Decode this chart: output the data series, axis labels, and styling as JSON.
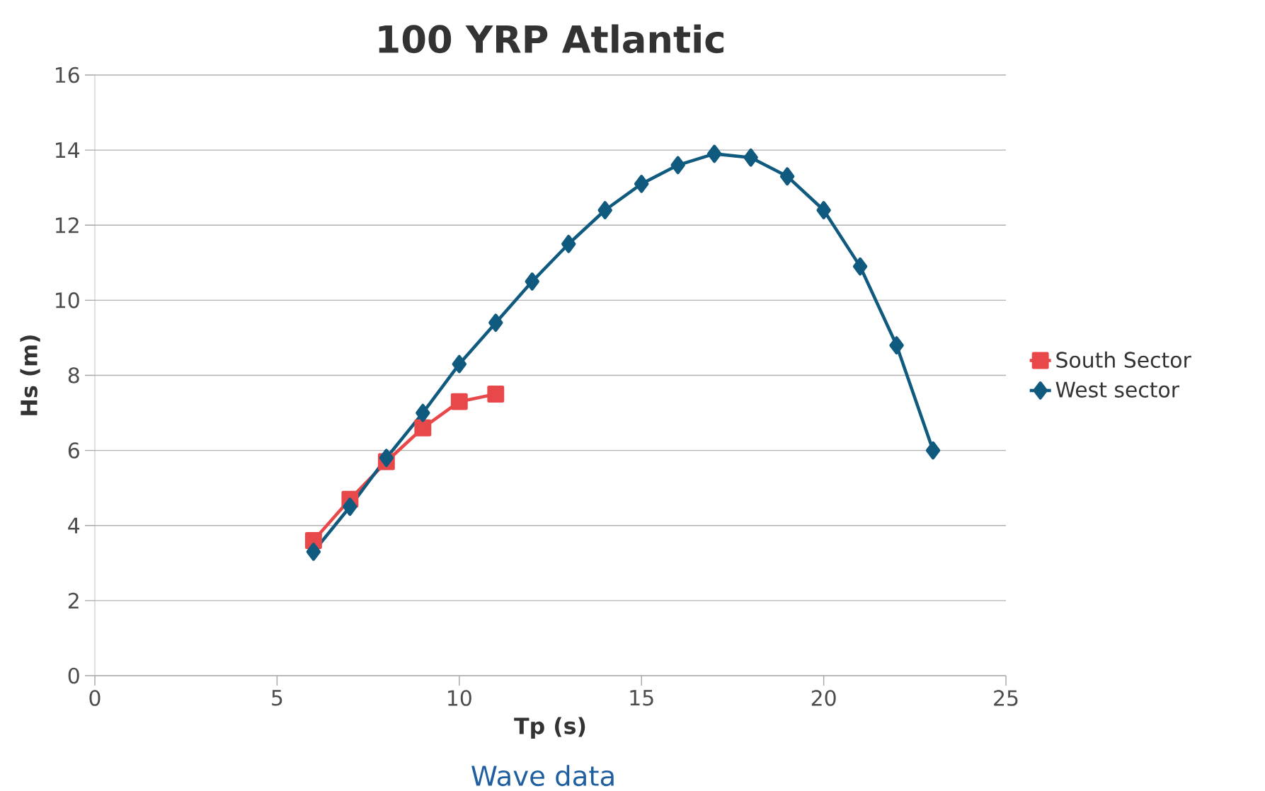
{
  "chart_data": {
    "type": "line",
    "title": "100 YRP Atlantic",
    "xlabel": "Tp (s)",
    "ylabel": "Hs (m)",
    "xlim": [
      0,
      25
    ],
    "xticks": [
      0,
      5,
      10,
      15,
      20,
      25
    ],
    "ylim": [
      0,
      16
    ],
    "yticks": [
      0,
      2,
      4,
      6,
      8,
      10,
      12,
      14,
      16
    ],
    "grid": "y",
    "legend": "right",
    "line_style": "solid",
    "series": [
      {
        "name": "South Sector",
        "color": "#e8484a",
        "marker": "square",
        "x": [
          6,
          7,
          8,
          9,
          10,
          11
        ],
        "values": [
          3.6,
          4.7,
          5.7,
          6.6,
          7.3,
          7.5
        ]
      },
      {
        "name": "West sector",
        "color": "#0f5a7e",
        "marker": "diamond",
        "x": [
          6,
          7,
          8,
          9,
          10,
          11,
          12,
          13,
          14,
          15,
          16,
          17,
          18,
          19,
          20,
          21,
          22,
          23
        ],
        "values": [
          3.3,
          4.5,
          5.8,
          7.0,
          8.3,
          9.4,
          10.5,
          11.5,
          12.4,
          13.1,
          13.6,
          13.9,
          13.8,
          13.3,
          12.4,
          10.9,
          8.8,
          6.0
        ]
      }
    ],
    "annotations": [
      "Wave data"
    ]
  }
}
